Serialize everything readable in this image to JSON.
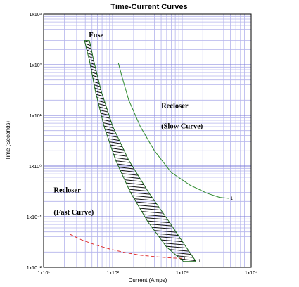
{
  "chart_data": {
    "type": "line",
    "title": "Time-Current Curves",
    "xlabel": "Current (Amps)",
    "ylabel": "Time (Seconds)",
    "x_scale": "log",
    "y_scale": "log",
    "xlim": [
      10,
      10000
    ],
    "ylim": [
      0.01,
      1000
    ],
    "grid": true,
    "x_ticks": [
      {
        "value": 10,
        "label": "1x10¹"
      },
      {
        "value": 100,
        "label": "1x10²"
      },
      {
        "value": 1000,
        "label": "1x10³"
      },
      {
        "value": 10000,
        "label": "1x10⁴"
      }
    ],
    "y_ticks": [
      {
        "value": 1000,
        "label": "1x10³"
      },
      {
        "value": 100,
        "label": "1x10²"
      },
      {
        "value": 10,
        "label": "1x10¹"
      },
      {
        "value": 1,
        "label": "1x10⁰"
      },
      {
        "value": 0.1,
        "label": "1x10⁻¹"
      },
      {
        "value": 0.01,
        "label": "1x10⁻²"
      }
    ],
    "series": [
      {
        "name": "Fuse",
        "kind": "band",
        "color": "#1a6a1a",
        "min_curve": {
          "x": [
            39,
            46,
            56,
            75,
            110,
            180,
            320,
            600,
            1050
          ],
          "y": [
            300,
            120,
            30,
            6,
            1.3,
            0.3,
            0.08,
            0.025,
            0.013
          ]
        },
        "max_curve": {
          "x": [
            46,
            53,
            68,
            100,
            170,
            330,
            650,
            1150,
            1600
          ],
          "y": [
            300,
            120,
            30,
            6,
            1.3,
            0.3,
            0.08,
            0.025,
            0.013
          ]
        },
        "end_label": "1"
      },
      {
        "name": "Recloser (Slow Curve)",
        "kind": "curve",
        "color": "#2e8b2e",
        "x": [
          120,
          135,
          170,
          250,
          400,
          700,
          1300,
          2300,
          3500,
          4800
        ],
        "y": [
          110,
          60,
          20,
          6,
          2,
          0.75,
          0.42,
          0.29,
          0.24,
          0.23
        ],
        "end_label": "1"
      },
      {
        "name": "Recloser (Fast Curve)",
        "kind": "curve",
        "color": "#e03030",
        "dashed": true,
        "x": [
          24,
          35,
          55,
          90,
          150,
          260,
          450,
          750,
          1000
        ],
        "y": [
          0.045,
          0.035,
          0.028,
          0.023,
          0.0195,
          0.0172,
          0.016,
          0.0152,
          0.015
        ],
        "end_label": "1"
      }
    ],
    "annotations": [
      {
        "text": "Fuse",
        "x": 45,
        "y": 350
      },
      {
        "text": "Recloser",
        "x": 500,
        "y": 14
      },
      {
        "text": "(Slow Curve)",
        "x": 500,
        "y": 5.5
      },
      {
        "text": "Recloser",
        "x": 14,
        "y": 0.3
      },
      {
        "text": "(Fast Curve)",
        "x": 14,
        "y": 0.11
      }
    ]
  }
}
